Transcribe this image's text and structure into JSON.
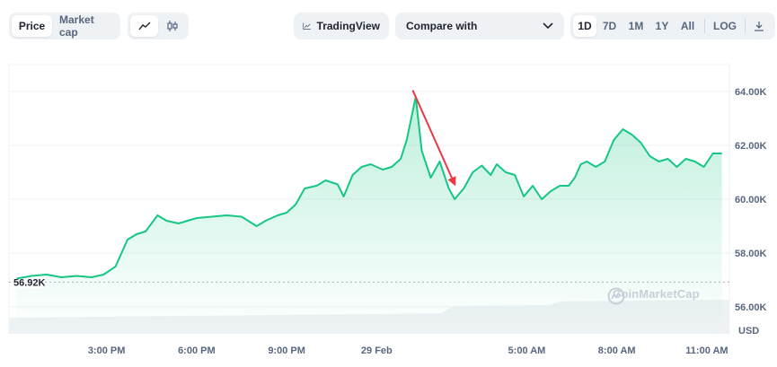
{
  "toolbar": {
    "metric_tabs": [
      {
        "label": "Price",
        "active": true
      },
      {
        "label": "Market cap",
        "active": false
      }
    ],
    "chart_style_icons": [
      "line-chart-icon",
      "candlestick-icon"
    ],
    "tradingview_label": "TradingView",
    "compare_label": "Compare with",
    "ranges": [
      {
        "label": "1D",
        "active": true
      },
      {
        "label": "7D",
        "active": false
      },
      {
        "label": "1M",
        "active": false
      },
      {
        "label": "1Y",
        "active": false
      },
      {
        "label": "All",
        "active": false
      }
    ],
    "log_label": "LOG",
    "download_icon": "download-icon"
  },
  "watermark": "CoinMarketCap",
  "colors": {
    "line": "#16c784",
    "fill": "#16c784",
    "arrow": "#ea3943",
    "grid": "#eff2f5",
    "volume": "#eff2f5",
    "reference": "#a6b0c3",
    "axis_text": "#58667e"
  },
  "chart_data": {
    "type": "area",
    "currency_label": "USD",
    "open_price_label": "56.92K",
    "open_price": 56920,
    "ylim": [
      55000,
      65000
    ],
    "y_ticks": [
      "64.00K",
      "62.00K",
      "60.00K",
      "58.00K",
      "56.00K"
    ],
    "y_tick_values": [
      64000,
      62000,
      60000,
      58000,
      56000
    ],
    "x_ticks": [
      "3:00 PM",
      "6:00 PM",
      "9:00 PM",
      "29 Feb",
      "5:00 AM",
      "8:00 AM",
      "11:00 AM"
    ],
    "x_tick_hours": [
      15,
      18,
      21,
      24,
      29,
      32,
      35
    ],
    "xlim_hours": [
      11.75,
      35.75
    ],
    "grid": true,
    "series": [
      {
        "hours": [
          12.0,
          12.5,
          13.0,
          13.5,
          14.0,
          14.5,
          14.9,
          15.3,
          15.7,
          16.0,
          16.3,
          16.7,
          17.0,
          17.4,
          17.7,
          18.0,
          18.5,
          19.0,
          19.5,
          20.0,
          20.3,
          20.7,
          21.0,
          21.3,
          21.6,
          22.0,
          22.3,
          22.7,
          22.9,
          23.2,
          23.5,
          23.8,
          24.2,
          24.5,
          24.8,
          25.0,
          25.3,
          25.5,
          25.8,
          26.1,
          26.4,
          26.6,
          26.9,
          27.2,
          27.5,
          27.8,
          28.0,
          28.3,
          28.6,
          28.9,
          29.2,
          29.5,
          29.8,
          30.1,
          30.4,
          30.6,
          30.8,
          31.0,
          31.3,
          31.6,
          31.9,
          32.2,
          32.5,
          32.8,
          33.1,
          33.4,
          33.7,
          34.0,
          34.3,
          34.6,
          34.9,
          35.2,
          35.5
        ],
        "values": [
          57.05,
          57.15,
          57.2,
          57.1,
          57.15,
          57.1,
          57.2,
          57.5,
          58.5,
          58.7,
          58.8,
          59.4,
          59.2,
          59.1,
          59.2,
          59.3,
          59.35,
          59.4,
          59.35,
          59.0,
          59.2,
          59.4,
          59.5,
          59.8,
          60.4,
          60.5,
          60.7,
          60.55,
          60.1,
          60.9,
          61.2,
          61.3,
          61.1,
          61.2,
          61.5,
          62.2,
          63.8,
          61.8,
          60.8,
          61.4,
          60.4,
          60.0,
          60.4,
          61.0,
          61.25,
          60.9,
          61.3,
          61.0,
          60.9,
          60.1,
          60.5,
          60.0,
          60.3,
          60.5,
          60.5,
          60.8,
          61.3,
          61.4,
          61.2,
          61.4,
          62.2,
          62.6,
          62.4,
          62.1,
          61.6,
          61.4,
          61.5,
          61.2,
          61.5,
          61.4,
          61.2,
          61.7,
          61.7
        ]
      }
    ],
    "annotation": {
      "type": "arrow",
      "from_hour": 25.2,
      "from_value": 64.05,
      "to_hour": 26.6,
      "to_value": 60.55
    }
  }
}
